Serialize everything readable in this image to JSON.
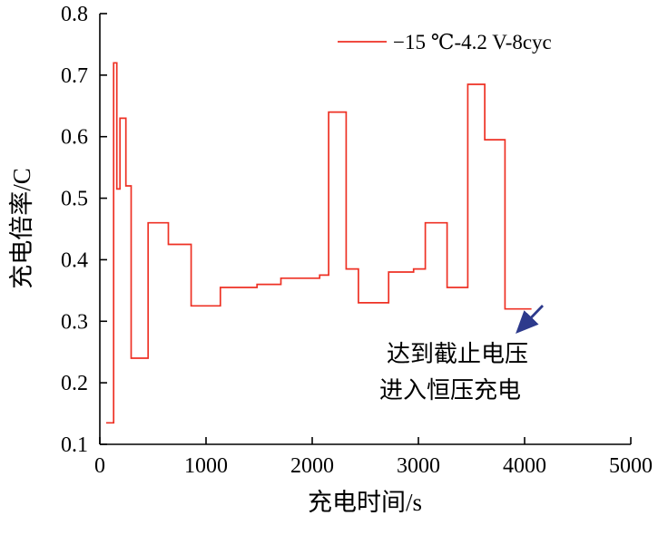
{
  "figure": {
    "xlabel": "充电时间/s",
    "ylabel": "充电倍率/C",
    "legend": {
      "label": "−15 ℃-4.2 V-8cyc"
    },
    "annotation": {
      "line1": "达到截止电压",
      "line2": "进入恒压充电",
      "arrow_color": "#2d3a8c"
    },
    "colors": {
      "series": "#ee3124",
      "axis": "#000000"
    }
  },
  "chart_data": {
    "type": "line",
    "style": "step",
    "title": "",
    "xlabel": "充电时间/s",
    "ylabel": "充电倍率/C",
    "xlim": [
      0,
      5000
    ],
    "ylim": [
      0.1,
      0.8
    ],
    "xticks": [
      0,
      1000,
      2000,
      3000,
      4000,
      5000
    ],
    "yticks": [
      0.1,
      0.2,
      0.3,
      0.4,
      0.5,
      0.6,
      0.7,
      0.8
    ],
    "grid": false,
    "legend_position": "upper-center-right",
    "series": [
      {
        "name": "−15 ℃-4.2 V-8cyc",
        "color": "#ee3124",
        "segments_t_start_t_end_rate": [
          [
            60,
            130,
            0.135
          ],
          [
            130,
            160,
            0.72
          ],
          [
            160,
            190,
            0.515
          ],
          [
            190,
            245,
            0.63
          ],
          [
            245,
            295,
            0.52
          ],
          [
            295,
            455,
            0.24
          ],
          [
            455,
            645,
            0.46
          ],
          [
            645,
            860,
            0.425
          ],
          [
            860,
            1135,
            0.325
          ],
          [
            1135,
            1480,
            0.355
          ],
          [
            1480,
            1705,
            0.36
          ],
          [
            1705,
            2070,
            0.37
          ],
          [
            2070,
            2155,
            0.375
          ],
          [
            2155,
            2320,
            0.64
          ],
          [
            2320,
            2435,
            0.385
          ],
          [
            2435,
            2720,
            0.33
          ],
          [
            2720,
            2955,
            0.38
          ],
          [
            2955,
            3065,
            0.385
          ],
          [
            3065,
            3270,
            0.46
          ],
          [
            3270,
            3465,
            0.355
          ],
          [
            3465,
            3625,
            0.685
          ],
          [
            3625,
            3815,
            0.595
          ],
          [
            3815,
            4065,
            0.32
          ]
        ]
      }
    ],
    "annotations": [
      {
        "text": [
          "达到截止电压",
          "进入恒压充电"
        ],
        "meaning": "cutoff voltage reached, enters constant-voltage charging",
        "arrow_points_to_data": [
          3900,
          0.32
        ]
      }
    ]
  }
}
